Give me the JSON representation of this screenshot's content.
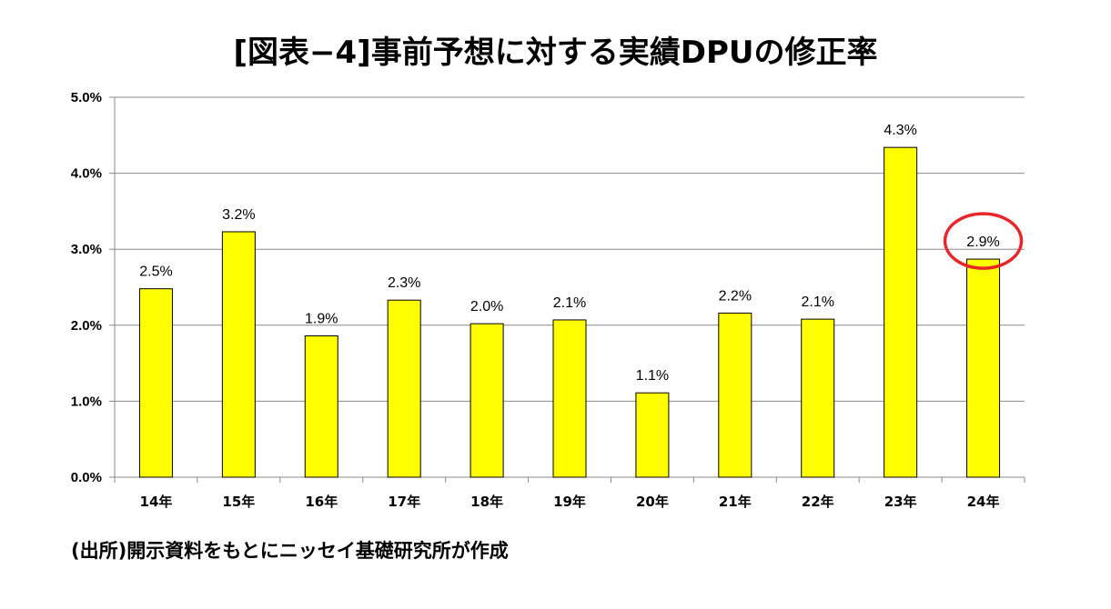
{
  "colors": {
    "bar_fill": "#FFFF00",
    "bar_stroke": "#000000",
    "gridline": "#888888",
    "highlight_circle": "#E8262A"
  },
  "chart_data": {
    "type": "bar",
    "title": "[図表−4]事前予想に対する実績DPUの修正率",
    "categories": [
      "14年",
      "15年",
      "16年",
      "17年",
      "18年",
      "19年",
      "20年",
      "21年",
      "22年",
      "23年",
      "24年"
    ],
    "values": [
      2.5,
      3.2,
      1.9,
      2.3,
      2.0,
      2.1,
      1.1,
      2.2,
      2.1,
      4.3,
      2.9
    ],
    "bar_values_precise": [
      2.48,
      3.23,
      1.86,
      2.33,
      2.02,
      2.07,
      1.11,
      2.16,
      2.08,
      4.34,
      2.87
    ],
    "data_labels": [
      "2.5%",
      "3.2%",
      "1.9%",
      "2.3%",
      "2.0%",
      "2.1%",
      "1.1%",
      "2.2%",
      "2.1%",
      "4.3%",
      "2.9%"
    ],
    "y_ticks": [
      "0.0%",
      "1.0%",
      "2.0%",
      "3.0%",
      "4.0%",
      "5.0%"
    ],
    "ylim": [
      0,
      5
    ],
    "unit": "%",
    "grid": true,
    "highlighted_category": "24年"
  },
  "footnote": "(出所)開示資料をもとにニッセイ基礎研究所が作成"
}
